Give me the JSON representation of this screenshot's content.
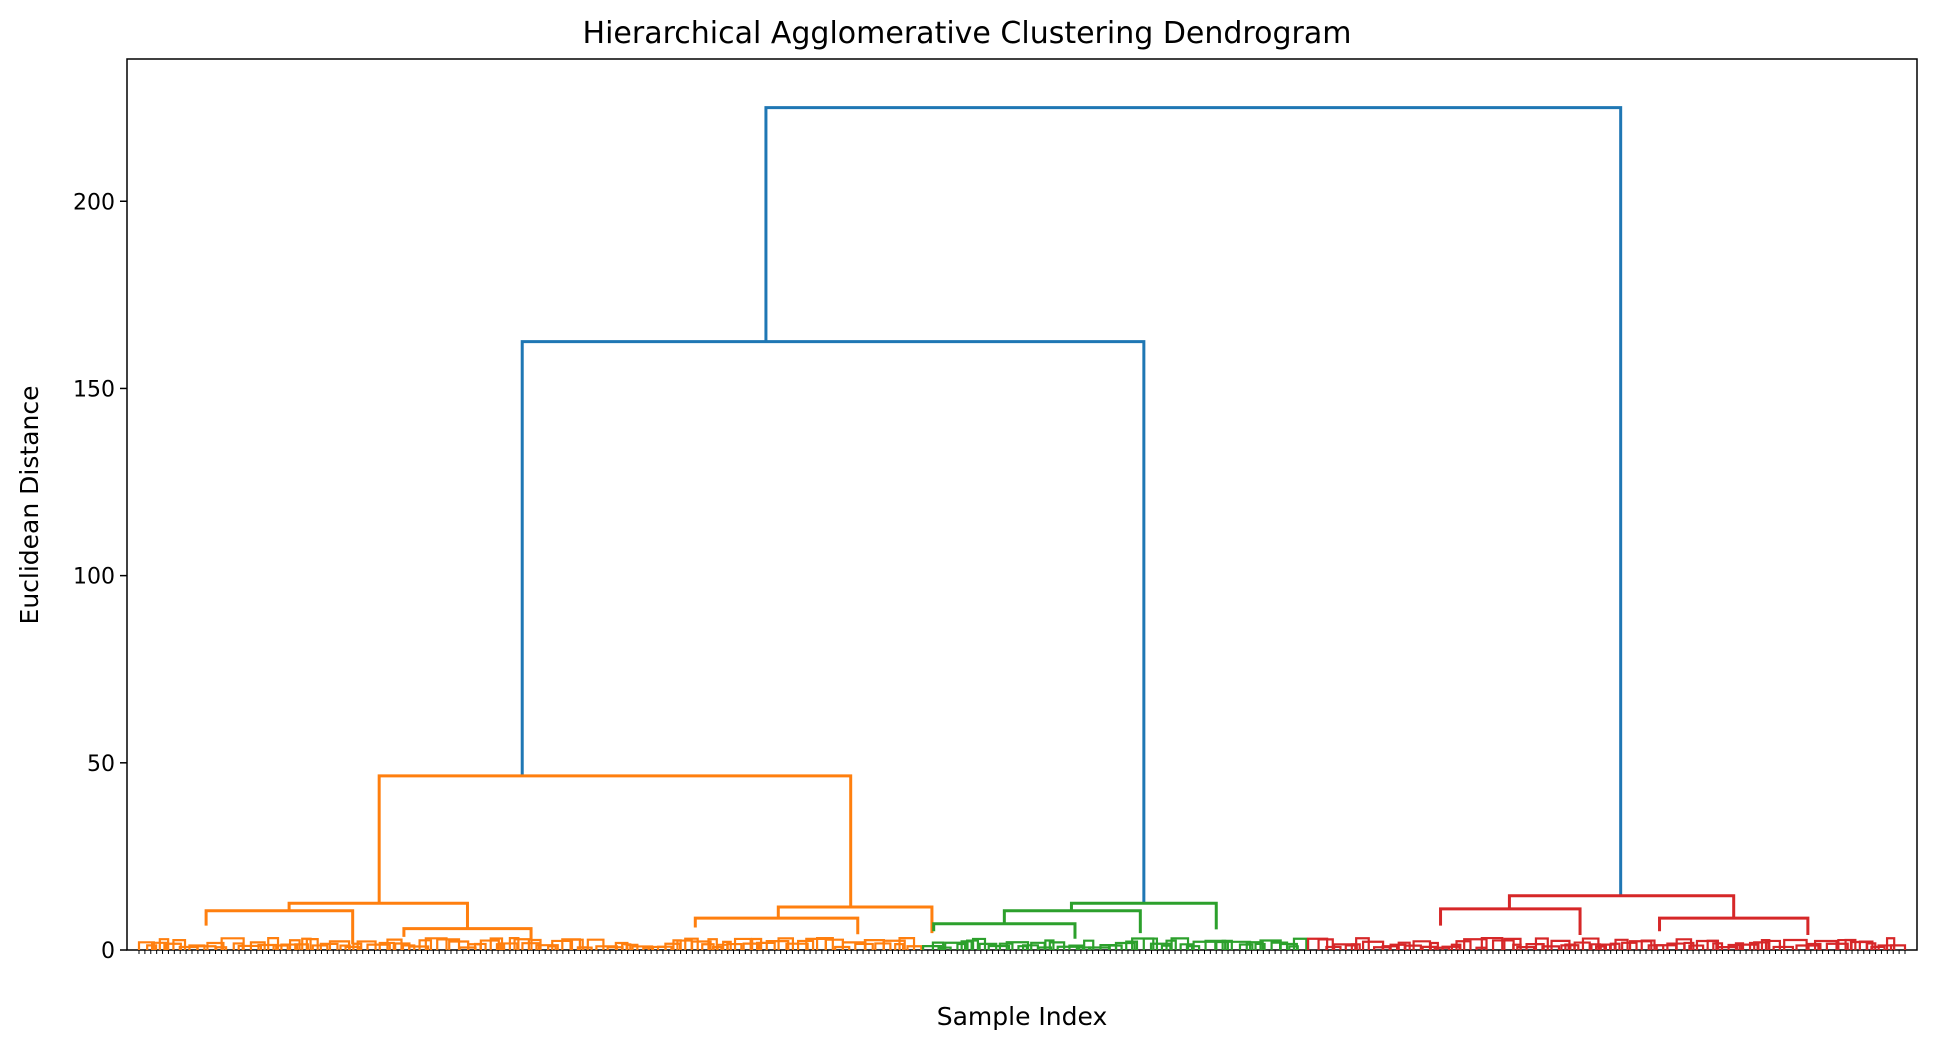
{
  "chart_data": {
    "type": "dendrogram",
    "title": "Hierarchical Agglomerative Clustering Dendrogram",
    "xlabel": "Sample Index",
    "ylabel": "Euclidean Distance",
    "ylim": [
      0,
      238
    ],
    "yticks": [
      0,
      50,
      100,
      150,
      200
    ],
    "ytick_labels": [
      "0",
      "50",
      "100",
      "150",
      "200"
    ],
    "grid": false,
    "legend": "none",
    "x_leaf_span": [
      0,
      1000
    ],
    "colors": {
      "top": "#1f77b4",
      "cluster1": "#ff7f0e",
      "cluster2": "#2ca02c",
      "cluster3": "#d62728",
      "axis": "#000000"
    },
    "merges": [
      {
        "id": "root",
        "color": "top",
        "left": 355,
        "right": 839,
        "height": 225,
        "left_height": 162.5,
        "right_height": 14.5
      },
      {
        "id": "top-2",
        "color": "top",
        "left": 217,
        "right": 569,
        "height": 162.5,
        "left_height": 46.5,
        "right_height": 12.5
      },
      {
        "id": "c1-main",
        "color": "cluster1",
        "left": 136,
        "right": 403,
        "height": 46.5,
        "left_height": 12.5,
        "right_height": 11.5
      },
      {
        "id": "c1-left",
        "color": "cluster1",
        "left": 85,
        "right": 186,
        "height": 12.5,
        "left_height": 10.5,
        "right_height": 5.7
      },
      {
        "id": "c1-left-a",
        "color": "cluster1",
        "left": 38,
        "right": 121,
        "height": 10.5,
        "left_height": 6.5,
        "right_height": 1.5
      },
      {
        "id": "c1-left-b",
        "color": "cluster1",
        "left": 150,
        "right": 222,
        "height": 5.7,
        "left_height": 3.5,
        "right_height": 2.5
      },
      {
        "id": "c1-right",
        "color": "cluster1",
        "left": 362,
        "right": 449,
        "height": 11.5,
        "left_height": 8.5,
        "right_height": 4.5
      },
      {
        "id": "c1-right-a",
        "color": "cluster1",
        "left": 315,
        "right": 407,
        "height": 8.5,
        "left_height": 6,
        "right_height": 4.2
      },
      {
        "id": "c2-main",
        "color": "cluster2",
        "left": 528,
        "right": 610,
        "height": 12.5,
        "left_height": 10.5,
        "right_height": 5.5
      },
      {
        "id": "c2-a",
        "color": "cluster2",
        "left": 490,
        "right": 567,
        "height": 10.5,
        "left_height": 7,
        "right_height": 4.5
      },
      {
        "id": "c2-b",
        "color": "cluster2",
        "left": 450,
        "right": 530,
        "height": 7,
        "left_height": 5,
        "right_height": 3
      },
      {
        "id": "c3-main",
        "color": "cluster3",
        "left": 776,
        "right": 903,
        "height": 14.5,
        "left_height": 11,
        "right_height": 8.5
      },
      {
        "id": "c3-a",
        "color": "cluster3",
        "left": 737,
        "right": 816,
        "height": 11,
        "left_height": 6.5,
        "right_height": 4
      },
      {
        "id": "c3-b",
        "color": "cluster3",
        "left": 861,
        "right": 945,
        "height": 8.5,
        "left_height": 5,
        "right_height": 4
      }
    ]
  }
}
